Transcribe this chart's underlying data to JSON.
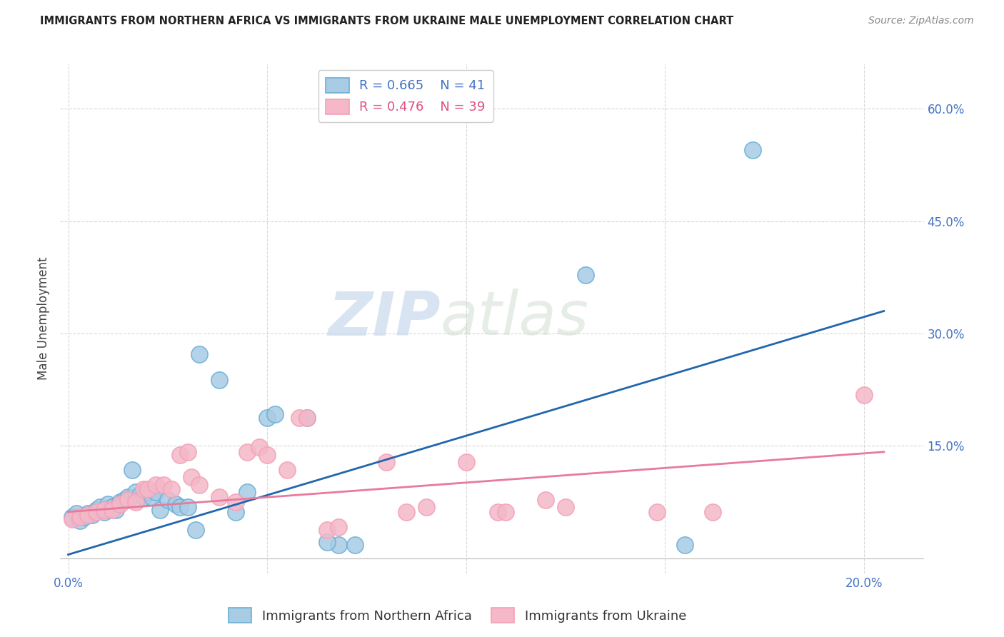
{
  "title": "IMMIGRANTS FROM NORTHERN AFRICA VS IMMIGRANTS FROM UKRAINE MALE UNEMPLOYMENT CORRELATION CHART",
  "source": "Source: ZipAtlas.com",
  "ylabel": "Male Unemployment",
  "x_ticks": [
    0.0,
    0.05,
    0.1,
    0.15,
    0.2
  ],
  "x_tick_labels": [
    "0.0%",
    "",
    "",
    "",
    "20.0%"
  ],
  "y_ticks": [
    0.0,
    0.15,
    0.3,
    0.45,
    0.6
  ],
  "y_tick_labels": [
    "",
    "15.0%",
    "30.0%",
    "45.0%",
    "60.0%"
  ],
  "xlim": [
    -0.002,
    0.215
  ],
  "ylim": [
    -0.02,
    0.66
  ],
  "blue_R": "0.665",
  "blue_N": "41",
  "pink_R": "0.476",
  "pink_N": "39",
  "legend_label_blue": "Immigrants from Northern Africa",
  "legend_label_pink": "Immigrants from Ukraine",
  "watermark_left": "ZIP",
  "watermark_right": "atlas",
  "blue_color": "#a8cce4",
  "pink_color": "#f4b8c8",
  "blue_edge_color": "#6baed6",
  "pink_edge_color": "#f4a0b8",
  "blue_line_color": "#2166ac",
  "pink_line_color": "#e87a9a",
  "legend_text_blue": "#4472c4",
  "legend_text_pink": "#e05080",
  "blue_scatter": [
    [
      0.001,
      0.055
    ],
    [
      0.002,
      0.06
    ],
    [
      0.003,
      0.05
    ],
    [
      0.004,
      0.055
    ],
    [
      0.005,
      0.06
    ],
    [
      0.006,
      0.058
    ],
    [
      0.007,
      0.065
    ],
    [
      0.008,
      0.068
    ],
    [
      0.009,
      0.062
    ],
    [
      0.01,
      0.072
    ],
    [
      0.011,
      0.068
    ],
    [
      0.012,
      0.065
    ],
    [
      0.013,
      0.075
    ],
    [
      0.014,
      0.078
    ],
    [
      0.015,
      0.082
    ],
    [
      0.016,
      0.118
    ],
    [
      0.017,
      0.088
    ],
    [
      0.018,
      0.085
    ],
    [
      0.019,
      0.082
    ],
    [
      0.02,
      0.088
    ],
    [
      0.021,
      0.082
    ],
    [
      0.022,
      0.088
    ],
    [
      0.023,
      0.065
    ],
    [
      0.025,
      0.078
    ],
    [
      0.027,
      0.072
    ],
    [
      0.028,
      0.068
    ],
    [
      0.03,
      0.068
    ],
    [
      0.032,
      0.038
    ],
    [
      0.033,
      0.272
    ],
    [
      0.038,
      0.238
    ],
    [
      0.042,
      0.062
    ],
    [
      0.045,
      0.088
    ],
    [
      0.05,
      0.188
    ],
    [
      0.052,
      0.192
    ],
    [
      0.06,
      0.188
    ],
    [
      0.068,
      0.018
    ],
    [
      0.072,
      0.018
    ],
    [
      0.13,
      0.378
    ],
    [
      0.155,
      0.018
    ],
    [
      0.172,
      0.545
    ],
    [
      0.065,
      0.022
    ]
  ],
  "pink_scatter": [
    [
      0.001,
      0.052
    ],
    [
      0.003,
      0.055
    ],
    [
      0.005,
      0.058
    ],
    [
      0.007,
      0.062
    ],
    [
      0.009,
      0.065
    ],
    [
      0.011,
      0.065
    ],
    [
      0.013,
      0.072
    ],
    [
      0.015,
      0.078
    ],
    [
      0.017,
      0.075
    ],
    [
      0.019,
      0.092
    ],
    [
      0.02,
      0.092
    ],
    [
      0.022,
      0.098
    ],
    [
      0.024,
      0.098
    ],
    [
      0.026,
      0.092
    ],
    [
      0.028,
      0.138
    ],
    [
      0.03,
      0.142
    ],
    [
      0.031,
      0.108
    ],
    [
      0.033,
      0.098
    ],
    [
      0.038,
      0.082
    ],
    [
      0.042,
      0.075
    ],
    [
      0.045,
      0.142
    ],
    [
      0.048,
      0.148
    ],
    [
      0.05,
      0.138
    ],
    [
      0.055,
      0.118
    ],
    [
      0.058,
      0.188
    ],
    [
      0.06,
      0.188
    ],
    [
      0.065,
      0.038
    ],
    [
      0.068,
      0.042
    ],
    [
      0.08,
      0.128
    ],
    [
      0.085,
      0.062
    ],
    [
      0.09,
      0.068
    ],
    [
      0.1,
      0.128
    ],
    [
      0.108,
      0.062
    ],
    [
      0.11,
      0.062
    ],
    [
      0.12,
      0.078
    ],
    [
      0.125,
      0.068
    ],
    [
      0.148,
      0.062
    ],
    [
      0.162,
      0.062
    ],
    [
      0.2,
      0.218
    ]
  ],
  "blue_line": [
    [
      0.0,
      0.005
    ],
    [
      0.205,
      0.33
    ]
  ],
  "pink_line": [
    [
      0.0,
      0.062
    ],
    [
      0.205,
      0.142
    ]
  ],
  "bg_color": "#ffffff",
  "grid_color": "#d8d8d8",
  "tick_color": "#4472c4",
  "title_color": "#222222"
}
